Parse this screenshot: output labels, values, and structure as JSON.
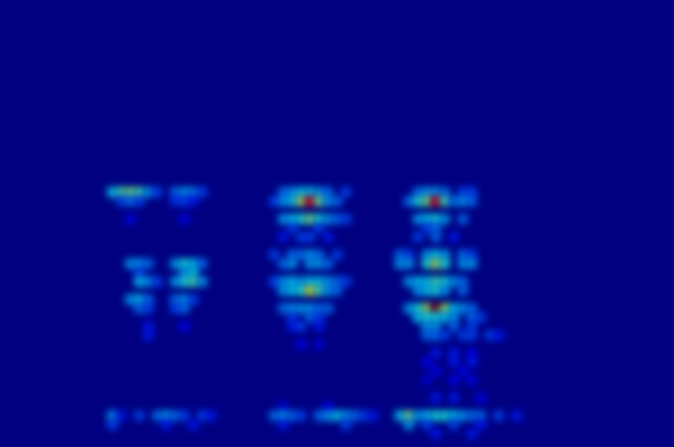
{
  "chart_data": {
    "type": "heatmap",
    "color": "jet",
    "grid": false,
    "tick_labels": false,
    "xlim": [
      0,
      75
    ],
    "ylim": [
      0,
      50
    ],
    "zlim": [
      0,
      1
    ],
    "cells": [
      [
        12,
        28,
        0.35
      ],
      [
        13,
        28,
        0.45
      ],
      [
        14,
        28,
        0.5
      ],
      [
        15,
        28,
        0.45
      ],
      [
        16,
        28,
        0.3
      ],
      [
        17,
        28,
        0.2
      ],
      [
        19,
        28,
        0.25
      ],
      [
        20,
        28,
        0.3
      ],
      [
        21,
        28,
        0.28
      ],
      [
        22,
        28,
        0.2
      ],
      [
        13,
        27,
        0.2
      ],
      [
        14,
        27,
        0.25
      ],
      [
        15,
        27,
        0.2
      ],
      [
        19,
        27,
        0.18
      ],
      [
        20,
        27,
        0.2
      ],
      [
        21,
        27,
        0.15
      ],
      [
        14,
        25,
        0.12
      ],
      [
        20,
        25,
        0.12
      ],
      [
        14,
        20,
        0.3
      ],
      [
        15,
        20,
        0.3
      ],
      [
        16,
        20,
        0.25
      ],
      [
        19,
        20,
        0.3
      ],
      [
        20,
        20,
        0.4
      ],
      [
        21,
        20,
        0.35
      ],
      [
        22,
        20,
        0.25
      ],
      [
        15,
        19,
        0.2
      ],
      [
        20,
        19,
        0.3
      ],
      [
        21,
        19,
        0.35
      ],
      [
        15,
        18,
        0.35
      ],
      [
        16,
        18,
        0.3
      ],
      [
        17,
        18,
        0.2
      ],
      [
        19,
        18,
        0.3
      ],
      [
        20,
        18,
        0.4
      ],
      [
        21,
        18,
        0.45
      ],
      [
        22,
        18,
        0.3
      ],
      [
        14,
        16,
        0.3
      ],
      [
        15,
        16,
        0.35
      ],
      [
        16,
        16,
        0.25
      ],
      [
        19,
        16,
        0.25
      ],
      [
        20,
        16,
        0.3
      ],
      [
        21,
        16,
        0.2
      ],
      [
        15,
        15,
        0.25
      ],
      [
        16,
        15,
        0.2
      ],
      [
        19,
        15,
        0.2
      ],
      [
        20,
        15,
        0.25
      ],
      [
        16,
        13,
        0.15
      ],
      [
        20,
        13,
        0.12
      ],
      [
        16,
        12,
        0.15
      ],
      [
        12,
        3,
        0.3
      ],
      [
        13,
        3,
        0.15
      ],
      [
        15,
        3,
        0.2
      ],
      [
        17,
        3,
        0.25
      ],
      [
        18,
        3,
        0.3
      ],
      [
        19,
        3,
        0.25
      ],
      [
        20,
        3,
        0.2
      ],
      [
        22,
        3,
        0.2
      ],
      [
        23,
        3,
        0.15
      ],
      [
        12,
        2,
        0.2
      ],
      [
        18,
        2,
        0.15
      ],
      [
        21,
        2,
        0.15
      ],
      [
        31,
        28,
        0.25
      ],
      [
        32,
        28,
        0.3
      ],
      [
        33,
        28,
        0.35
      ],
      [
        34,
        28,
        0.35
      ],
      [
        35,
        28,
        0.3
      ],
      [
        36,
        28,
        0.25
      ],
      [
        38,
        28,
        0.2
      ],
      [
        30,
        27,
        0.2
      ],
      [
        31,
        27,
        0.3
      ],
      [
        32,
        27,
        0.35
      ],
      [
        33,
        27,
        0.55
      ],
      [
        34,
        27,
        0.9
      ],
      [
        35,
        27,
        0.5
      ],
      [
        36,
        27,
        0.3
      ],
      [
        37,
        27,
        0.25
      ],
      [
        31,
        25,
        0.3
      ],
      [
        32,
        25,
        0.35
      ],
      [
        33,
        25,
        0.4
      ],
      [
        34,
        25,
        0.5
      ],
      [
        35,
        25,
        0.4
      ],
      [
        36,
        25,
        0.3
      ],
      [
        37,
        25,
        0.25
      ],
      [
        38,
        25,
        0.2
      ],
      [
        32,
        24,
        0.2
      ],
      [
        35,
        24,
        0.2
      ],
      [
        31,
        23,
        0.15
      ],
      [
        33,
        23,
        0.2
      ],
      [
        34,
        23,
        0.2
      ],
      [
        36,
        23,
        0.15
      ],
      [
        30,
        21,
        0.2
      ],
      [
        32,
        21,
        0.25
      ],
      [
        33,
        21,
        0.25
      ],
      [
        34,
        21,
        0.3
      ],
      [
        35,
        21,
        0.25
      ],
      [
        37,
        21,
        0.2
      ],
      [
        31,
        20,
        0.25
      ],
      [
        32,
        20,
        0.3
      ],
      [
        34,
        20,
        0.3
      ],
      [
        35,
        20,
        0.3
      ],
      [
        36,
        20,
        0.25
      ],
      [
        30,
        18,
        0.2
      ],
      [
        31,
        18,
        0.3
      ],
      [
        32,
        18,
        0.35
      ],
      [
        33,
        18,
        0.3
      ],
      [
        34,
        18,
        0.35
      ],
      [
        35,
        18,
        0.35
      ],
      [
        36,
        18,
        0.3
      ],
      [
        37,
        18,
        0.25
      ],
      [
        38,
        18,
        0.2
      ],
      [
        31,
        17,
        0.3
      ],
      [
        32,
        17,
        0.35
      ],
      [
        33,
        17,
        0.4
      ],
      [
        34,
        17,
        0.6
      ],
      [
        35,
        17,
        0.45
      ],
      [
        36,
        17,
        0.3
      ],
      [
        37,
        17,
        0.25
      ],
      [
        31,
        15,
        0.25
      ],
      [
        32,
        15,
        0.3
      ],
      [
        33,
        15,
        0.3
      ],
      [
        34,
        15,
        0.3
      ],
      [
        35,
        15,
        0.25
      ],
      [
        36,
        15,
        0.25
      ],
      [
        32,
        14,
        0.2
      ],
      [
        34,
        14,
        0.25
      ],
      [
        35,
        14,
        0.2
      ],
      [
        32,
        13,
        0.15
      ],
      [
        33,
        13,
        0.2
      ],
      [
        35,
        13,
        0.15
      ],
      [
        33,
        11,
        0.12
      ],
      [
        35,
        11,
        0.1
      ],
      [
        31,
        4,
        0.1
      ],
      [
        36,
        4,
        0.12
      ],
      [
        30,
        3,
        0.25
      ],
      [
        31,
        3,
        0.3
      ],
      [
        32,
        3,
        0.25
      ],
      [
        33,
        3,
        0.2
      ],
      [
        35,
        3,
        0.25
      ],
      [
        36,
        3,
        0.3
      ],
      [
        37,
        3,
        0.35
      ],
      [
        38,
        3,
        0.3
      ],
      [
        39,
        3,
        0.25
      ],
      [
        40,
        3,
        0.2
      ],
      [
        41,
        3,
        0.15
      ],
      [
        31,
        2,
        0.15
      ],
      [
        38,
        2,
        0.2
      ],
      [
        46,
        28,
        0.25
      ],
      [
        47,
        28,
        0.3
      ],
      [
        48,
        28,
        0.3
      ],
      [
        49,
        28,
        0.25
      ],
      [
        51,
        28,
        0.2
      ],
      [
        52,
        28,
        0.2
      ],
      [
        45,
        27,
        0.25
      ],
      [
        46,
        27,
        0.4
      ],
      [
        47,
        27,
        0.5
      ],
      [
        48,
        27,
        0.9
      ],
      [
        49,
        27,
        0.45
      ],
      [
        50,
        27,
        0.25
      ],
      [
        51,
        27,
        0.3
      ],
      [
        52,
        27,
        0.25
      ],
      [
        46,
        25,
        0.3
      ],
      [
        47,
        25,
        0.35
      ],
      [
        48,
        25,
        0.4
      ],
      [
        49,
        25,
        0.3
      ],
      [
        51,
        25,
        0.25
      ],
      [
        47,
        24,
        0.2
      ],
      [
        48,
        24,
        0.25
      ],
      [
        46,
        23,
        0.2
      ],
      [
        48,
        23,
        0.25
      ],
      [
        50,
        23,
        0.15
      ],
      [
        44,
        21,
        0.25
      ],
      [
        45,
        21,
        0.2
      ],
      [
        47,
        21,
        0.3
      ],
      [
        48,
        21,
        0.35
      ],
      [
        49,
        21,
        0.3
      ],
      [
        51,
        21,
        0.25
      ],
      [
        52,
        21,
        0.2
      ],
      [
        44,
        20,
        0.3
      ],
      [
        45,
        20,
        0.3
      ],
      [
        47,
        20,
        0.4
      ],
      [
        48,
        20,
        0.55
      ],
      [
        49,
        20,
        0.4
      ],
      [
        51,
        20,
        0.3
      ],
      [
        52,
        20,
        0.3
      ],
      [
        45,
        18,
        0.3
      ],
      [
        46,
        18,
        0.35
      ],
      [
        47,
        18,
        0.35
      ],
      [
        48,
        18,
        0.45
      ],
      [
        49,
        18,
        0.4
      ],
      [
        50,
        18,
        0.3
      ],
      [
        51,
        18,
        0.25
      ],
      [
        46,
        17,
        0.3
      ],
      [
        47,
        17,
        0.35
      ],
      [
        48,
        17,
        0.4
      ],
      [
        49,
        17,
        0.3
      ],
      [
        51,
        17,
        0.25
      ],
      [
        45,
        15,
        0.3
      ],
      [
        46,
        15,
        0.4
      ],
      [
        47,
        15,
        0.55
      ],
      [
        48,
        15,
        1.0
      ],
      [
        49,
        15,
        0.55
      ],
      [
        50,
        15,
        0.35
      ],
      [
        51,
        15,
        0.3
      ],
      [
        52,
        15,
        0.25
      ],
      [
        46,
        14,
        0.35
      ],
      [
        47,
        14,
        0.4
      ],
      [
        48,
        14,
        0.4
      ],
      [
        49,
        14,
        0.35
      ],
      [
        50,
        14,
        0.3
      ],
      [
        52,
        14,
        0.25
      ],
      [
        53,
        14,
        0.2
      ],
      [
        47,
        13,
        0.3
      ],
      [
        48,
        13,
        0.3
      ],
      [
        50,
        13,
        0.25
      ],
      [
        52,
        13,
        0.2
      ],
      [
        47,
        12,
        0.25
      ],
      [
        48,
        12,
        0.25
      ],
      [
        49,
        12,
        0.2
      ],
      [
        51,
        12,
        0.2
      ],
      [
        52,
        12,
        0.2
      ],
      [
        54,
        12,
        0.2
      ],
      [
        55,
        12,
        0.15
      ],
      [
        48,
        10,
        0.15
      ],
      [
        50,
        10,
        0.15
      ],
      [
        52,
        10,
        0.12
      ],
      [
        47,
        9,
        0.12
      ],
      [
        50,
        9,
        0.15
      ],
      [
        52,
        9,
        0.15
      ],
      [
        48,
        8,
        0.12
      ],
      [
        51,
        8,
        0.12
      ],
      [
        47,
        7,
        0.1
      ],
      [
        50,
        7,
        0.12
      ],
      [
        52,
        7,
        0.12
      ],
      [
        48,
        5,
        0.15
      ],
      [
        50,
        5,
        0.15
      ],
      [
        53,
        5,
        0.12
      ],
      [
        44,
        3,
        0.35
      ],
      [
        45,
        3,
        0.5
      ],
      [
        46,
        3,
        0.3
      ],
      [
        47,
        3,
        0.35
      ],
      [
        48,
        3,
        0.4
      ],
      [
        49,
        3,
        0.4
      ],
      [
        50,
        3,
        0.35
      ],
      [
        51,
        3,
        0.3
      ],
      [
        52,
        3,
        0.25
      ],
      [
        53,
        3,
        0.25
      ],
      [
        55,
        3,
        0.2
      ],
      [
        57,
        3,
        0.15
      ],
      [
        45,
        2,
        0.3
      ],
      [
        47,
        2,
        0.2
      ],
      [
        50,
        2,
        0.2
      ],
      [
        53,
        2,
        0.15
      ],
      [
        48,
        1,
        0.15
      ],
      [
        52,
        1,
        0.15
      ]
    ]
  }
}
